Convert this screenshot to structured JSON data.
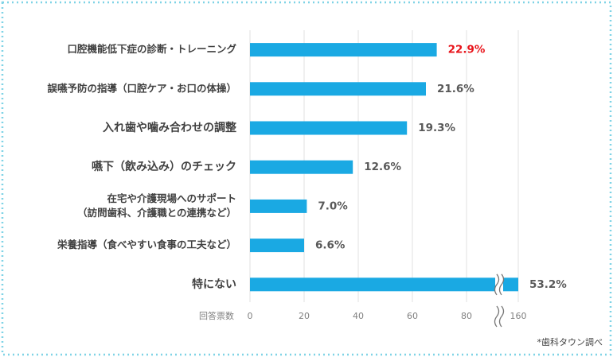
{
  "chart_data": {
    "type": "bar",
    "orientation": "horizontal",
    "categories": [
      [
        "口腔機能低下症の診断・トレーニング"
      ],
      [
        "誤嚥予防の指導（口腔ケア・お口の体操）"
      ],
      [
        "入れ歯や噛み合わせの調整"
      ],
      [
        "嚥下（飲み込み）のチェック"
      ],
      [
        "在宅や介護現場へのサポート",
        "（訪問歯科、介護職との連携など）"
      ],
      [
        "栄養指導（食べやすい食事の工夫など）"
      ],
      [
        "特にない"
      ]
    ],
    "series": [
      {
        "color": "#1aa9e3",
        "values": [
          69,
          65,
          58,
          38,
          21,
          20,
          160
        ],
        "share_labels": [
          "22.9%",
          "21.6%",
          "19.3%",
          "12.6%",
          "7.0%",
          "6.6%",
          "53.2%"
        ],
        "share_label_colors": [
          "#e8141b",
          "#595959",
          "#595959",
          "#595959",
          "#595959",
          "#595959",
          "#595959"
        ]
      }
    ],
    "xlabel": "回答票数",
    "xlim": [
      0,
      160
    ],
    "axis_break": [
      90,
      155
    ],
    "xticks": [
      0,
      20,
      40,
      60,
      80,
      160
    ],
    "grid": true,
    "source": "*歯科タウン調べ"
  }
}
